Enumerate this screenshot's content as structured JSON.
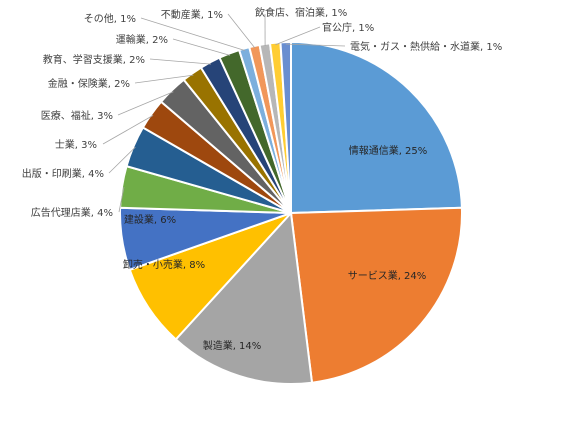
{
  "chart_data": {
    "type": "pie",
    "title": "",
    "start_angle_deg": 0,
    "direction": "clockwise",
    "series": [
      {
        "name": "",
        "slices": [
          {
            "label": "情報通信業",
            "value": 25,
            "display": "情報通信業, 25%",
            "color": "#5B9BD5",
            "label_inside": true
          },
          {
            "label": "サービス業",
            "value": 24,
            "display": "サービス業, 24%",
            "color": "#ED7D31",
            "label_inside": true
          },
          {
            "label": "製造業",
            "value": 14,
            "display": "製造業, 14%",
            "color": "#A5A5A5",
            "label_inside": true
          },
          {
            "label": "卸売・小売業",
            "value": 8,
            "display": "卸売・小売業, 8%",
            "color": "#FFC000",
            "label_inside": true
          },
          {
            "label": "建設業",
            "value": 6,
            "display": "建設業, 6%",
            "color": "#4472C4",
            "label_inside": true
          },
          {
            "label": "広告代理店業",
            "value": 4,
            "display": "広告代理店業, 4%",
            "color": "#70AD47",
            "label_inside": false
          },
          {
            "label": "出版・印刷業",
            "value": 4,
            "display": "出版・印刷業, 4%",
            "color": "#255E91",
            "label_inside": false
          },
          {
            "label": "士業",
            "value": 3,
            "display": "士業, 3%",
            "color": "#9E480E",
            "label_inside": false
          },
          {
            "label": "医療、福祉",
            "value": 3,
            "display": "医療、福祉, 3%",
            "color": "#636363",
            "label_inside": false
          },
          {
            "label": "金融・保険業",
            "value": 2,
            "display": "金融・保険業, 2%",
            "color": "#997300",
            "label_inside": false
          },
          {
            "label": "教育、学習支援業",
            "value": 2,
            "display": "教育、学習支援業, 2%",
            "color": "#264478",
            "label_inside": false
          },
          {
            "label": "運輸業",
            "value": 2,
            "display": "運輸業, 2%",
            "color": "#43682B",
            "label_inside": false
          },
          {
            "label": "その他",
            "value": 1,
            "display": "その他, 1%",
            "color": "#7CAFDD",
            "label_inside": false
          },
          {
            "label": "不動産業",
            "value": 1,
            "display": "不動産業, 1%",
            "color": "#F1975A",
            "label_inside": false
          },
          {
            "label": "飲食店、宿泊業",
            "value": 1,
            "display": "飲食店、宿泊業, 1%",
            "color": "#B7B7B7",
            "label_inside": false
          },
          {
            "label": "官公庁",
            "value": 1,
            "display": "官公庁, 1%",
            "color": "#FFCD33",
            "label_inside": false
          },
          {
            "label": "電気・ガス・熱供給・水道業",
            "value": 1,
            "display": "電気・ガス・熱供給・水道業, 1%",
            "color": "#698ED0",
            "label_inside": false
          }
        ]
      }
    ],
    "legend": "none",
    "leader_line_color": "#A6A6A6"
  }
}
